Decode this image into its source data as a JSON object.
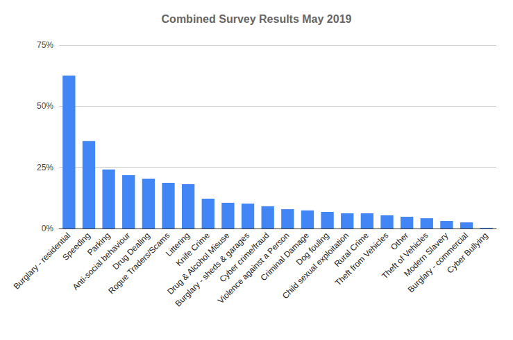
{
  "chart_data": {
    "type": "bar",
    "title": "Combined Survey Results May 2019",
    "categories": [
      "Burglary - residential",
      "Speeding",
      "Parking",
      "Anti-social behaviour",
      "Drug Dealing",
      "Rogue Traders/Scams",
      "Littering",
      "Knife Crime",
      "Drug & Alcohol Misuse",
      "Burglary - sheds & garages",
      "Cyber crime/fraud",
      "Violence against a Person",
      "Criminal Damage",
      "Dog fouling",
      "Child sexual exploitation",
      "Rural Crime",
      "Theft from Vehicles",
      "Other",
      "Theft of Vehicles",
      "Modern Slavery",
      "Burglary - commercial",
      "Cyber Bullying"
    ],
    "values": [
      62.5,
      35.7,
      24.1,
      21.8,
      20.4,
      18.7,
      18.1,
      12.2,
      10.5,
      10.2,
      9.1,
      7.9,
      7.4,
      6.8,
      6.2,
      6.2,
      5.4,
      4.8,
      4.2,
      3.1,
      2.5,
      0.3
    ],
    "color": "#4285f4",
    "ylim": [
      0,
      75
    ],
    "yticks": [
      {
        "value": 0,
        "label": "0%"
      },
      {
        "value": 25,
        "label": "25%"
      },
      {
        "value": 50,
        "label": "50%"
      },
      {
        "value": 75,
        "label": "75%"
      }
    ],
    "grid": true
  }
}
